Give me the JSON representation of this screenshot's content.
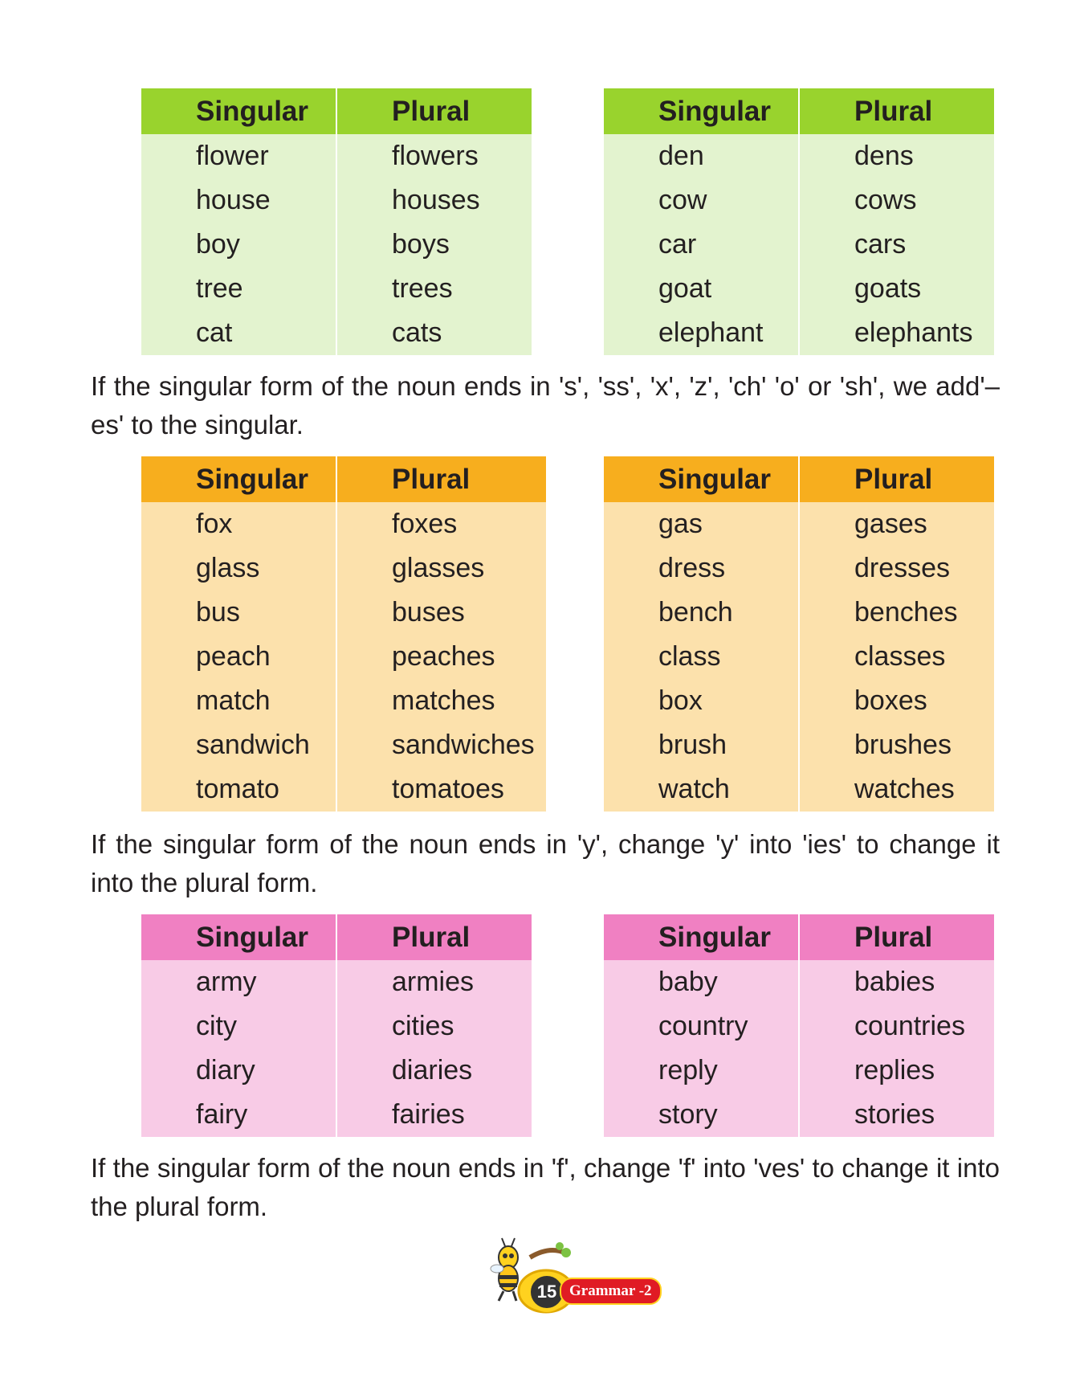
{
  "header_singular": "Singular",
  "header_plural": "Plural",
  "section1": {
    "left": [
      [
        "flower",
        "flowers"
      ],
      [
        "house",
        "houses"
      ],
      [
        "boy",
        "boys"
      ],
      [
        "tree",
        "trees"
      ],
      [
        "cat",
        "cats"
      ]
    ],
    "right": [
      [
        "den",
        "dens"
      ],
      [
        "cow",
        "cows"
      ],
      [
        "car",
        "cars"
      ],
      [
        "goat",
        "goats"
      ],
      [
        "elephant",
        "elephants"
      ]
    ]
  },
  "rule_es": "If the singular form of the noun ends in 's', 'ss', 'x', 'z', 'ch' 'o' or 'sh', we add'–es' to the singular.",
  "section2": {
    "left": [
      [
        "fox",
        "foxes"
      ],
      [
        "glass",
        "glasses"
      ],
      [
        "bus",
        "buses"
      ],
      [
        "peach",
        "peaches"
      ],
      [
        "match",
        "matches"
      ],
      [
        "sandwich",
        "sandwiches"
      ],
      [
        "tomato",
        "tomatoes"
      ]
    ],
    "right": [
      [
        "gas",
        "gases"
      ],
      [
        "dress",
        "dresses"
      ],
      [
        "bench",
        "benches"
      ],
      [
        "class",
        "classes"
      ],
      [
        "box",
        "boxes"
      ],
      [
        "brush",
        "brushes"
      ],
      [
        "watch",
        "watches"
      ]
    ]
  },
  "rule_y": "If the singular form of the noun ends in 'y', change 'y' into 'ies' to change it into the plural form.",
  "section3": {
    "left": [
      [
        "army",
        "armies"
      ],
      [
        "city",
        "cities"
      ],
      [
        "diary",
        "diaries"
      ],
      [
        "fairy",
        "fairies"
      ]
    ],
    "right": [
      [
        "baby",
        "babies"
      ],
      [
        "country",
        "countries"
      ],
      [
        "reply",
        "replies"
      ],
      [
        "story",
        "stories"
      ]
    ]
  },
  "rule_f": "If the singular form of the noun ends in 'f', change 'f' into 'ves' to change it into the plural form.",
  "footer": {
    "page_number": "15",
    "series": "Grammar -2",
    "mascot_icon": "bee-mascot-icon"
  },
  "colors": {
    "green_header": "#99d32d",
    "green_body": "#e3f3cf",
    "orange_header": "#f7ae1e",
    "orange_body": "#fce1ac",
    "pink_header": "#f080c2",
    "pink_body": "#f8cbe6"
  }
}
